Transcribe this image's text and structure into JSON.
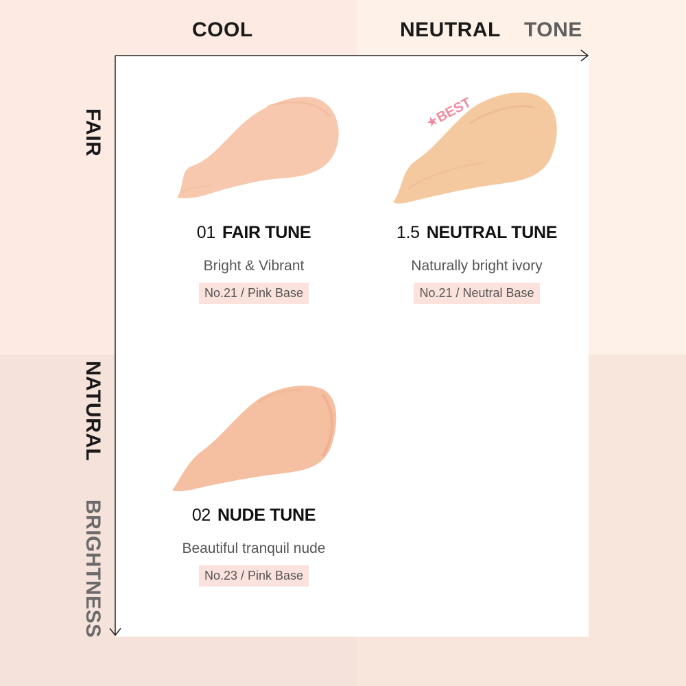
{
  "axes": {
    "tone_cool": "COOL",
    "tone_neutral": "NEUTRAL",
    "tone_title": "TONE",
    "brightness_fair": "FAIR",
    "brightness_natural": "NATURAL",
    "brightness_title": "BRIGHTNESS"
  },
  "shades": [
    {
      "number": "01",
      "name": "FAIR TUNE",
      "description": "Bright & Vibrant",
      "tag": "No.21 / Pink Base",
      "swatch_color": "#f7c8ad"
    },
    {
      "number": "1.5",
      "name": "NEUTRAL TUNE",
      "description": "Naturally bright ivory",
      "tag": "No.21 / Neutral Base",
      "swatch_color": "#f5c9a0",
      "badge": "★BEST"
    },
    {
      "number": "02",
      "name": "NUDE TUNE",
      "description": "Beautiful tranquil nude",
      "tag": "No.23 / Pink Base",
      "swatch_color": "#f5c0a1"
    }
  ],
  "colors": {
    "badge": "#f08ca0",
    "tag_background": "#fbe2dc"
  }
}
